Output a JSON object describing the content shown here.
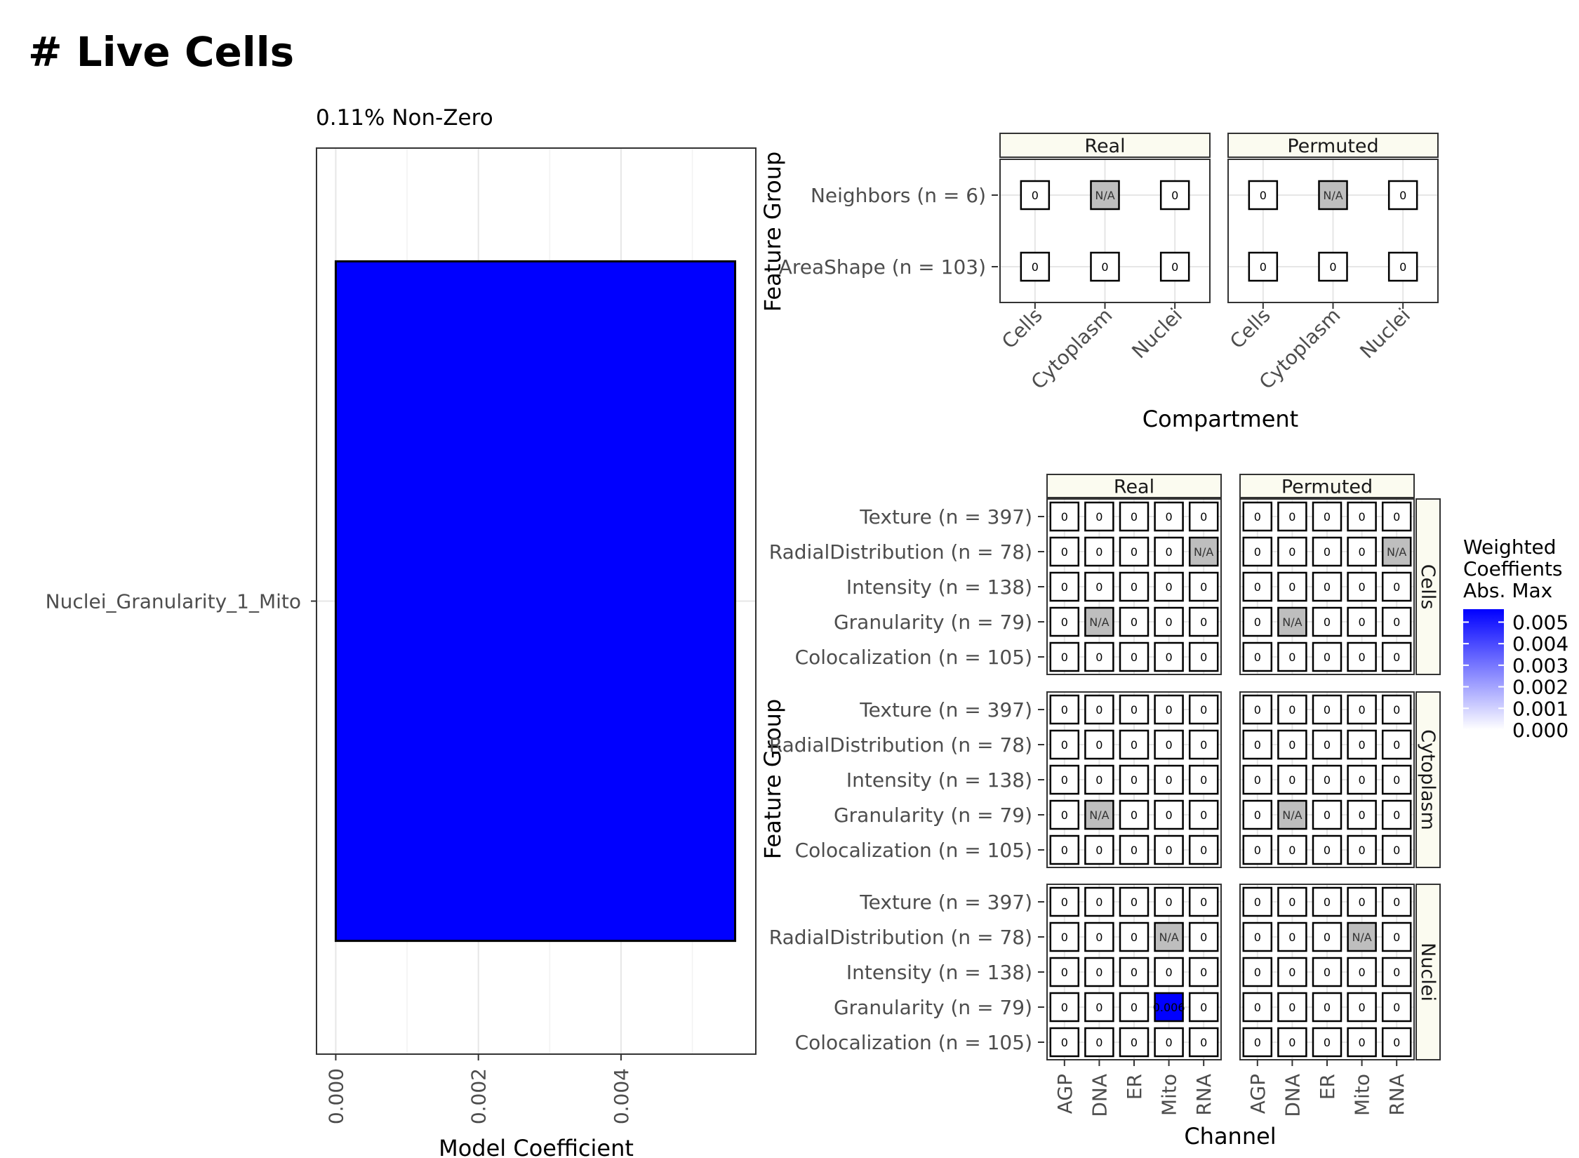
{
  "title": "# Live Cells",
  "chart_data": [
    {
      "type": "bar",
      "orientation": "horizontal",
      "subtitle": "0.11% Non-Zero",
      "categories": [
        "Nuclei_Granularity_1_Mito"
      ],
      "values": [
        0.0056
      ],
      "xlabel": "Model Coefficient",
      "xlim": [
        -0.00027,
        0.00589
      ],
      "xticks": [
        0.0,
        0.002,
        0.004
      ],
      "xtick_labels": [
        "0.000",
        "0.002",
        "0.004"
      ],
      "bar_color": "#0000ff",
      "grid": true
    },
    {
      "type": "heatmap",
      "facets": [
        "Real",
        "Permuted"
      ],
      "ylabel": "Feature Group",
      "xlabel": "Compartment",
      "columns": [
        "Cells",
        "Cytoplasm",
        "Nuclei"
      ],
      "rows": [
        "Neighbors (n = 6)",
        "AreaShape (n = 103)"
      ],
      "values": {
        "Real": [
          [
            "0",
            "N/A",
            "0"
          ],
          [
            "0",
            "0",
            "0"
          ]
        ],
        "Permuted": [
          [
            "0",
            "N/A",
            "0"
          ],
          [
            "0",
            "0",
            "0"
          ]
        ]
      }
    },
    {
      "type": "heatmap",
      "facets": [
        "Real",
        "Permuted"
      ],
      "row_facets": [
        "Cells",
        "Cytoplasm",
        "Nuclei"
      ],
      "ylabel": "Feature Group",
      "xlabel": "Channel",
      "columns": [
        "AGP",
        "DNA",
        "ER",
        "Mito",
        "RNA"
      ],
      "rows": [
        "Texture (n = 397)",
        "RadialDistribution (n = 78)",
        "Intensity (n = 138)",
        "Granularity (n = 79)",
        "Colocalization (n = 105)"
      ],
      "values": {
        "Cells": {
          "Real": [
            [
              "0",
              "0",
              "0",
              "0",
              "0"
            ],
            [
              "0",
              "0",
              "0",
              "0",
              "N/A"
            ],
            [
              "0",
              "0",
              "0",
              "0",
              "0"
            ],
            [
              "0",
              "N/A",
              "0",
              "0",
              "0"
            ],
            [
              "0",
              "0",
              "0",
              "0",
              "0"
            ]
          ],
          "Permuted": [
            [
              "0",
              "0",
              "0",
              "0",
              "0"
            ],
            [
              "0",
              "0",
              "0",
              "0",
              "N/A"
            ],
            [
              "0",
              "0",
              "0",
              "0",
              "0"
            ],
            [
              "0",
              "N/A",
              "0",
              "0",
              "0"
            ],
            [
              "0",
              "0",
              "0",
              "0",
              "0"
            ]
          ]
        },
        "Cytoplasm": {
          "Real": [
            [
              "0",
              "0",
              "0",
              "0",
              "0"
            ],
            [
              "0",
              "0",
              "0",
              "0",
              "0"
            ],
            [
              "0",
              "0",
              "0",
              "0",
              "0"
            ],
            [
              "0",
              "N/A",
              "0",
              "0",
              "0"
            ],
            [
              "0",
              "0",
              "0",
              "0",
              "0"
            ]
          ],
          "Permuted": [
            [
              "0",
              "0",
              "0",
              "0",
              "0"
            ],
            [
              "0",
              "0",
              "0",
              "0",
              "0"
            ],
            [
              "0",
              "0",
              "0",
              "0",
              "0"
            ],
            [
              "0",
              "N/A",
              "0",
              "0",
              "0"
            ],
            [
              "0",
              "0",
              "0",
              "0",
              "0"
            ]
          ]
        },
        "Nuclei": {
          "Real": [
            [
              "0",
              "0",
              "0",
              "0",
              "0"
            ],
            [
              "0",
              "0",
              "0",
              "N/A",
              "0"
            ],
            [
              "0",
              "0",
              "0",
              "0",
              "0"
            ],
            [
              "0",
              "0",
              "0",
              "0.006",
              "0"
            ],
            [
              "0",
              "0",
              "0",
              "0",
              "0"
            ]
          ],
          "Permuted": [
            [
              "0",
              "0",
              "0",
              "0",
              "0"
            ],
            [
              "0",
              "0",
              "0",
              "N/A",
              "0"
            ],
            [
              "0",
              "0",
              "0",
              "0",
              "0"
            ],
            [
              "0",
              "0",
              "0",
              "0",
              "0"
            ],
            [
              "0",
              "0",
              "0",
              "0",
              "0"
            ]
          ]
        }
      }
    }
  ],
  "legend": {
    "title": [
      "Weighted",
      "Coeffients",
      "Abs. Max"
    ],
    "ticks": [
      "0.005",
      "0.004",
      "0.003",
      "0.002",
      "0.001",
      "0.000"
    ],
    "tick_values": [
      0.005,
      0.004,
      0.003,
      0.002,
      0.001,
      0.0
    ],
    "max": 0.0056,
    "low_color": "#ffffff",
    "high_color": "#0000ff",
    "na_color": "#bebebe"
  }
}
